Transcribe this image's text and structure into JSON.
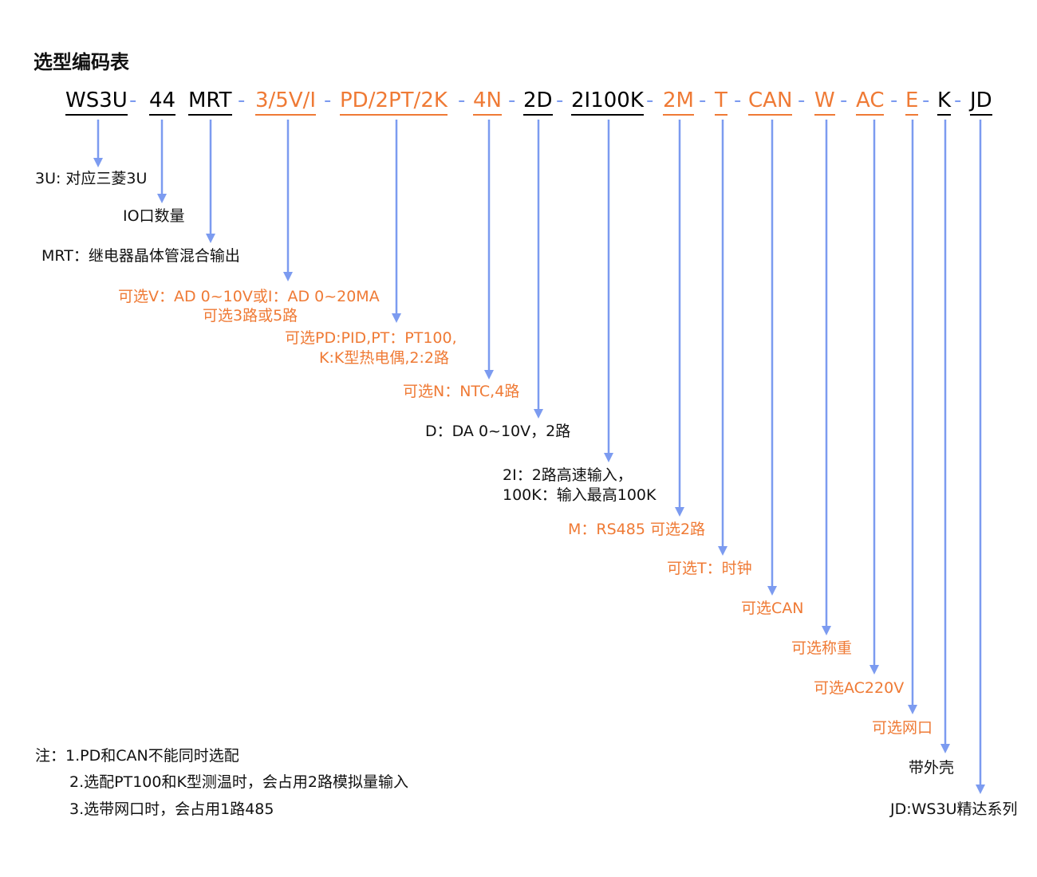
{
  "title": "选型编码表",
  "codes": [
    "WS3U",
    "44",
    "MRT",
    "3/5V/I",
    "PD/2PT/2K",
    "4N",
    "2D",
    "2I100K",
    "2M",
    "T",
    "CAN",
    "W",
    "AC",
    "E",
    "K",
    "JD"
  ],
  "dash": "-",
  "descriptions": {
    "series": "3U: 对应三菱3U",
    "io": "IO口数量",
    "mrt": "MRT：继电器晶体管混合输出",
    "analog_1": "可选V：AD 0~10V或I：AD 0~20MA",
    "analog_2": "可选3路或5路",
    "temp_1": "可选PD:PID,PT：PT100,",
    "temp_2": "K:K型热电偶,2:2路",
    "ntc": "可选N：NTC,4路",
    "da": "D：DA 0~10V，2路",
    "hs_1": "2I：2路高速输入，",
    "hs_2": "100K：输入最高100K",
    "rs485": "M：RS485 可选2路",
    "clock": "可选T：时钟",
    "can": "可选CAN",
    "weigh": "可选称重",
    "ac": "可选AC220V",
    "eth": "可选网口",
    "case": "带外壳",
    "jd": "JD:WS3U精达系列"
  },
  "notes": [
    "注：1.PD和CAN不能同时选配",
    "2.选配PT100和K型测温时，会占用2路模拟量输入",
    "3.选带网口时，会占用1路485"
  ],
  "colors": {
    "black": "#000000",
    "orange": "#ef7a35",
    "arrow": "#7c9bf0"
  }
}
